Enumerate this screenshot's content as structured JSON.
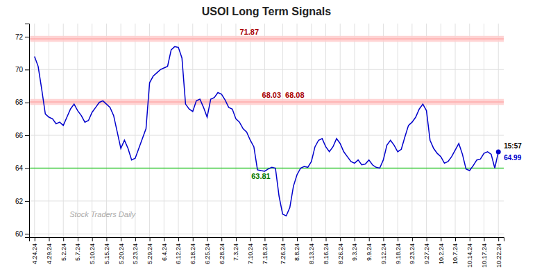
{
  "chart_data": {
    "type": "line",
    "title": "USOI Long Term Signals",
    "watermark": "Stock Traders Daily",
    "categories": [
      "4.24.24",
      null,
      null,
      null,
      "4.29.24",
      null,
      null,
      null,
      "5.2.24",
      null,
      null,
      null,
      "5.7.24",
      null,
      null,
      null,
      "5.10.24",
      null,
      null,
      null,
      "5.15.24",
      null,
      null,
      null,
      "5.20.24",
      null,
      null,
      null,
      "5.23.24",
      null,
      null,
      null,
      "5.29.24",
      null,
      null,
      null,
      "6.4.24",
      null,
      null,
      null,
      "6.12.24",
      null,
      null,
      null,
      "6.18.24",
      null,
      null,
      null,
      "6.25.24",
      null,
      null,
      null,
      "6.28.24",
      null,
      null,
      null,
      "7.3.24",
      null,
      null,
      null,
      "7.10.24",
      null,
      null,
      null,
      "7.18.24",
      null,
      null,
      null,
      null,
      "7.26.24",
      null,
      null,
      null,
      "8.8.24",
      null,
      null,
      null,
      "8.13.24",
      null,
      null,
      null,
      "8.16.24",
      null,
      null,
      null,
      "8.26.24",
      null,
      null,
      null,
      "9.3.24",
      null,
      null,
      null,
      "9.9.24",
      null,
      null,
      null,
      "9.12.24",
      null,
      null,
      null,
      "9.18.24",
      null,
      null,
      null,
      "9.23.24",
      null,
      null,
      null,
      "9.27.24",
      null,
      null,
      null,
      "10.2.24",
      null,
      null,
      null,
      "10.7.24",
      null,
      null,
      null,
      "10.14.24",
      null,
      null,
      null,
      "10.17.24",
      null,
      null,
      null,
      "10.22.24"
    ],
    "values": [
      70.8,
      70.2,
      68.8,
      67.3,
      67.1,
      67.0,
      66.7,
      66.8,
      66.6,
      67.1,
      67.6,
      67.9,
      67.5,
      67.2,
      66.8,
      66.9,
      67.4,
      67.7,
      68.0,
      68.1,
      67.9,
      67.7,
      67.2,
      66.2,
      65.2,
      65.7,
      65.2,
      64.5,
      64.6,
      65.2,
      65.8,
      66.4,
      69.2,
      69.6,
      69.8,
      70.0,
      70.1,
      70.2,
      71.2,
      71.4,
      71.35,
      70.7,
      67.9,
      67.6,
      67.45,
      68.1,
      68.2,
      67.7,
      67.1,
      68.2,
      68.3,
      68.6,
      68.5,
      68.15,
      67.7,
      67.6,
      67.0,
      66.8,
      66.4,
      66.2,
      65.7,
      65.3,
      63.9,
      63.85,
      63.81,
      63.95,
      64.05,
      64.0,
      62.3,
      61.2,
      61.1,
      61.6,
      62.9,
      63.6,
      64.0,
      64.1,
      64.05,
      64.4,
      65.3,
      65.7,
      65.8,
      65.3,
      65.0,
      65.3,
      65.8,
      65.5,
      65.0,
      64.7,
      64.4,
      64.3,
      64.5,
      64.2,
      64.25,
      64.5,
      64.2,
      64.05,
      64.0,
      64.5,
      65.4,
      65.7,
      65.4,
      65.0,
      65.15,
      65.9,
      66.6,
      66.8,
      67.1,
      67.6,
      67.9,
      67.5,
      65.7,
      65.2,
      64.9,
      64.7,
      64.3,
      64.4,
      64.7,
      65.1,
      65.5,
      64.85,
      63.95,
      63.85,
      64.15,
      64.5,
      64.55,
      64.9,
      65.0,
      64.85,
      64.0,
      64.99
    ],
    "color": "#0000cc",
    "ylim": [
      59.8,
      72.8
    ],
    "yticks": [
      60,
      62,
      64,
      66,
      68,
      70,
      72
    ],
    "grid": true,
    "reference_lines": [
      {
        "value": 71.87,
        "color": "#ff9999",
        "band_color": "#ffcccc",
        "labels": [
          "71.87"
        ],
        "label_color": "#aa0000"
      },
      {
        "value": 68.03,
        "color": "#ff9999",
        "band_color": "#ffcccc",
        "labels": [
          "68.03",
          "68.08"
        ],
        "label_color": "#aa0000"
      },
      {
        "value": 64.0,
        "color": "#44cc44",
        "labels": [
          "63.81"
        ],
        "label_color": "#007700"
      }
    ],
    "current_labels": {
      "time": "15:57",
      "price": "64.99"
    }
  }
}
